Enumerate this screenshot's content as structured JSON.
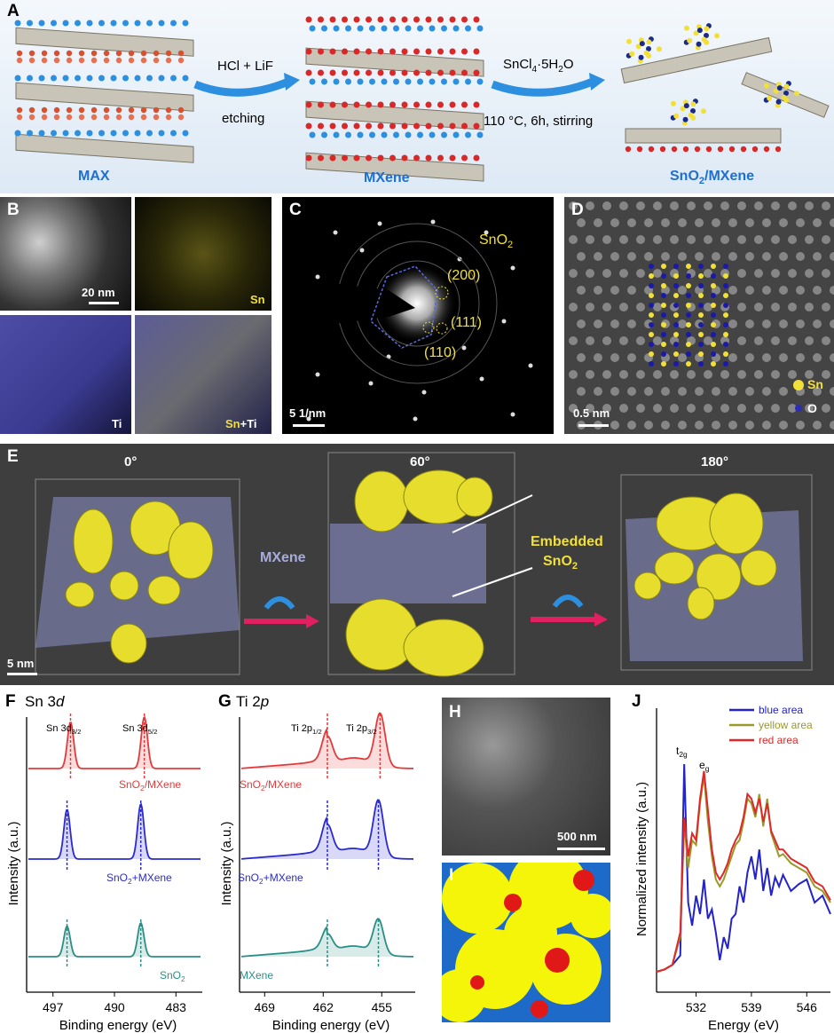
{
  "panels": {
    "A": {
      "letter": "A",
      "stages": [
        "MAX",
        "MXene",
        "SnO2/MXene"
      ],
      "stage3_main": "SnO",
      "stage3_sub": "2",
      "stage3_rest": "/MXene",
      "step1_top": "HCl + LiF",
      "step1_bottom": "etching",
      "step2_top_main": "SnCl",
      "step2_top_sub": "4",
      "step2_top_rest": "·5H",
      "step2_top_sub2": "2",
      "step2_top_end": "O",
      "step2_bottom": "110 °C, 6h, stirring"
    },
    "B": {
      "letter": "B",
      "scale": "20 nm",
      "sn": "Sn",
      "ti": "Ti",
      "sn_plus": "Sn",
      "plus": "+",
      "ti2": "Ti"
    },
    "C": {
      "letter": "C",
      "phase_main": "SnO",
      "phase_sub": "2",
      "r200": "(200)",
      "r111": "(111)",
      "r110": "(110)",
      "scale": "5 1/nm"
    },
    "D": {
      "letter": "D",
      "scale": "0.5 nm",
      "sn": "Sn",
      "o": "O"
    },
    "E": {
      "letter": "E",
      "angles": [
        "0°",
        "60°",
        "180°"
      ],
      "mxene": "MXene",
      "embedded": "Embedded",
      "embedded2_main": "SnO",
      "embedded2_sub": "2",
      "scale": "5 nm"
    },
    "F": {
      "letter": "F",
      "title_main": "Sn 3",
      "title_it": "d",
      "peak1_main": "Sn 3d",
      "peak1_sub": "3/2",
      "peak2_main": "Sn 3d",
      "peak2_sub": "5/2",
      "curves": [
        {
          "label_main": "SnO",
          "label_sub": "2",
          "label_rest": "/MXene",
          "color": "#e33b3b"
        },
        {
          "label_main": "SnO",
          "label_sub": "2",
          "label_rest": "+MXene",
          "color": "#2b2bd0"
        },
        {
          "label_main": "SnO",
          "label_sub": "2",
          "label_rest": "",
          "color": "#2a8f86"
        }
      ],
      "ylabel": "Intensity (a.u.)",
      "xlabel": "Binding energy (eV)",
      "xticks": [
        "497",
        "490",
        "483"
      ]
    },
    "G": {
      "letter": "G",
      "title_main": "Ti 2",
      "title_it": "p",
      "peak1_main": "Ti 2p",
      "peak1_sub": "1/2",
      "peak2_main": "Ti 2p",
      "peak2_sub": "3/2",
      "curves": [
        {
          "label_main": "SnO",
          "label_sub": "2",
          "label_rest": "/MXene",
          "color": "#e33b3b"
        },
        {
          "label_main": "SnO",
          "label_sub": "2",
          "label_rest": "+MXene",
          "color": "#2b2bd0"
        },
        {
          "label_main": "MXene",
          "label_sub": "",
          "label_rest": "",
          "color": "#2a8f86"
        }
      ],
      "ylabel": "Intensity (a.u.)",
      "xlabel": "Binding energy (eV)",
      "xticks": [
        "469",
        "462",
        "455"
      ]
    },
    "H": {
      "letter": "H",
      "scale": "500 nm"
    },
    "I": {
      "letter": "I"
    },
    "J": {
      "letter": "J",
      "ylabel": "Normalized intensity (a.u.)",
      "xlabel": "Energy (eV)",
      "xticks": [
        "532",
        "539",
        "546"
      ],
      "t2g_main": "t",
      "t2g_sub": "2g",
      "eg_main": "e",
      "eg_sub": "g",
      "legend": [
        {
          "name": "blue area",
          "color": "#2323c8"
        },
        {
          "name": "yellow area",
          "color": "#9a9a2a"
        },
        {
          "name": "red area",
          "color": "#e02828"
        }
      ]
    }
  },
  "chart_data": [
    {
      "type": "line",
      "title": "Sn 3d",
      "xlabel": "Binding energy (eV)",
      "ylabel": "Intensity (a.u.)",
      "xlim": [
        500,
        480
      ],
      "xticks": [
        497,
        490,
        483
      ],
      "peaks_eV": [
        495.4,
        487.0
      ],
      "series": [
        {
          "name": "SnO2/MXene",
          "peaks": [
            495.0,
            486.6
          ]
        },
        {
          "name": "SnO2+MXene",
          "peaks": [
            495.4,
            487.0
          ]
        },
        {
          "name": "SnO2",
          "peaks": [
            495.4,
            487.0
          ]
        }
      ]
    },
    {
      "type": "line",
      "title": "Ti 2p",
      "xlabel": "Binding energy (eV)",
      "ylabel": "Intensity (a.u.)",
      "xlim": [
        472,
        451
      ],
      "xticks": [
        469,
        462,
        455
      ],
      "peaks_eV": [
        461.5,
        455.4
      ],
      "series": [
        {
          "name": "SnO2/MXene",
          "peaks": [
            461.5,
            455.2
          ]
        },
        {
          "name": "SnO2+MXene",
          "peaks": [
            461.5,
            455.4
          ]
        },
        {
          "name": "MXene",
          "peaks": [
            461.5,
            455.4
          ]
        }
      ]
    },
    {
      "type": "line",
      "title": "",
      "xlabel": "Energy (eV)",
      "ylabel": "Normalized intensity (a.u.)",
      "xlim": [
        527,
        549
      ],
      "xticks": [
        532,
        539,
        546
      ],
      "series": [
        {
          "name": "blue area",
          "x": [
            527,
            528,
            529,
            530,
            530.5,
            531,
            531.5,
            532,
            532.5,
            533,
            533.5,
            534,
            534.5,
            535,
            535.5,
            536,
            536.5,
            537,
            537.5,
            538,
            538.5,
            539,
            539.5,
            540,
            540.5,
            541,
            541.5,
            542,
            542.5,
            543,
            544,
            545,
            546,
            547,
            548,
            549
          ],
          "y": [
            0.05,
            0.06,
            0.08,
            0.12,
            0.95,
            0.35,
            0.25,
            0.38,
            0.3,
            0.45,
            0.28,
            0.32,
            0.22,
            0.1,
            0.2,
            0.15,
            0.28,
            0.3,
            0.42,
            0.35,
            0.48,
            0.55,
            0.45,
            0.58,
            0.4,
            0.5,
            0.38,
            0.46,
            0.42,
            0.47,
            0.4,
            0.43,
            0.45,
            0.35,
            0.38,
            0.3
          ]
        },
        {
          "name": "yellow area",
          "x": [
            527,
            528,
            529,
            530,
            530.5,
            531,
            531.5,
            532,
            532.5,
            533,
            533.5,
            534,
            534.5,
            535,
            535.5,
            536,
            536.5,
            537,
            537.5,
            538,
            538.5,
            539,
            539.5,
            540,
            540.5,
            541,
            541.5,
            542,
            542.5,
            543,
            544,
            545,
            546,
            547,
            548,
            549
          ],
          "y": [
            0.05,
            0.06,
            0.08,
            0.2,
            0.7,
            0.5,
            0.62,
            0.6,
            0.78,
            0.9,
            0.7,
            0.55,
            0.45,
            0.42,
            0.45,
            0.5,
            0.55,
            0.6,
            0.62,
            0.7,
            0.8,
            0.78,
            0.72,
            0.82,
            0.68,
            0.8,
            0.65,
            0.6,
            0.55,
            0.56,
            0.52,
            0.5,
            0.48,
            0.42,
            0.4,
            0.35
          ]
        },
        {
          "name": "red area",
          "x": [
            527,
            528,
            529,
            530,
            530.5,
            531,
            531.5,
            532,
            532.5,
            533,
            533.5,
            534,
            534.5,
            535,
            535.5,
            536,
            536.5,
            537,
            537.5,
            538,
            538.5,
            539,
            539.5,
            540,
            540.5,
            541,
            541.5,
            542,
            542.5,
            543,
            544,
            545,
            546,
            547,
            548,
            549
          ],
          "y": [
            0.05,
            0.06,
            0.08,
            0.22,
            0.72,
            0.55,
            0.65,
            0.62,
            0.8,
            0.92,
            0.75,
            0.58,
            0.48,
            0.45,
            0.48,
            0.52,
            0.58,
            0.62,
            0.65,
            0.72,
            0.82,
            0.8,
            0.74,
            0.8,
            0.7,
            0.78,
            0.66,
            0.62,
            0.58,
            0.58,
            0.54,
            0.52,
            0.5,
            0.44,
            0.42,
            0.36
          ]
        }
      ]
    }
  ]
}
